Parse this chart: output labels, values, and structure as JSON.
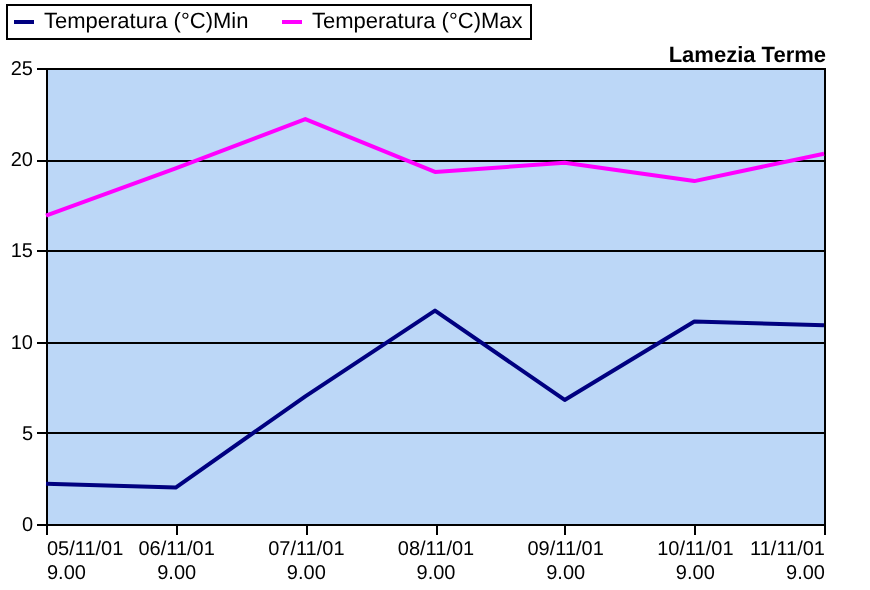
{
  "chart_data": {
    "type": "line",
    "title": "Lamezia Terme",
    "categories": [
      "05/11/01 9.00",
      "06/11/01 9.00",
      "07/11/01 9.00",
      "08/11/01 9.00",
      "09/11/01 9.00",
      "10/11/01 9.00",
      "11/11/01 9.00"
    ],
    "series": [
      {
        "name": "Temperatura (°C)Min",
        "color": "#000080",
        "values": [
          2.2,
          2.0,
          7.0,
          11.7,
          6.8,
          11.1,
          10.9
        ]
      },
      {
        "name": "Temperatura (°C)Max",
        "color": "#ff00ff",
        "values": [
          16.9,
          19.5,
          22.2,
          19.3,
          19.8,
          18.8,
          20.3
        ]
      }
    ],
    "ylim": [
      0,
      25
    ],
    "yticks": [
      0,
      5,
      10,
      15,
      20,
      25
    ],
    "grid": "y",
    "legend": "top left",
    "marker": "none",
    "line_style": "solid"
  }
}
